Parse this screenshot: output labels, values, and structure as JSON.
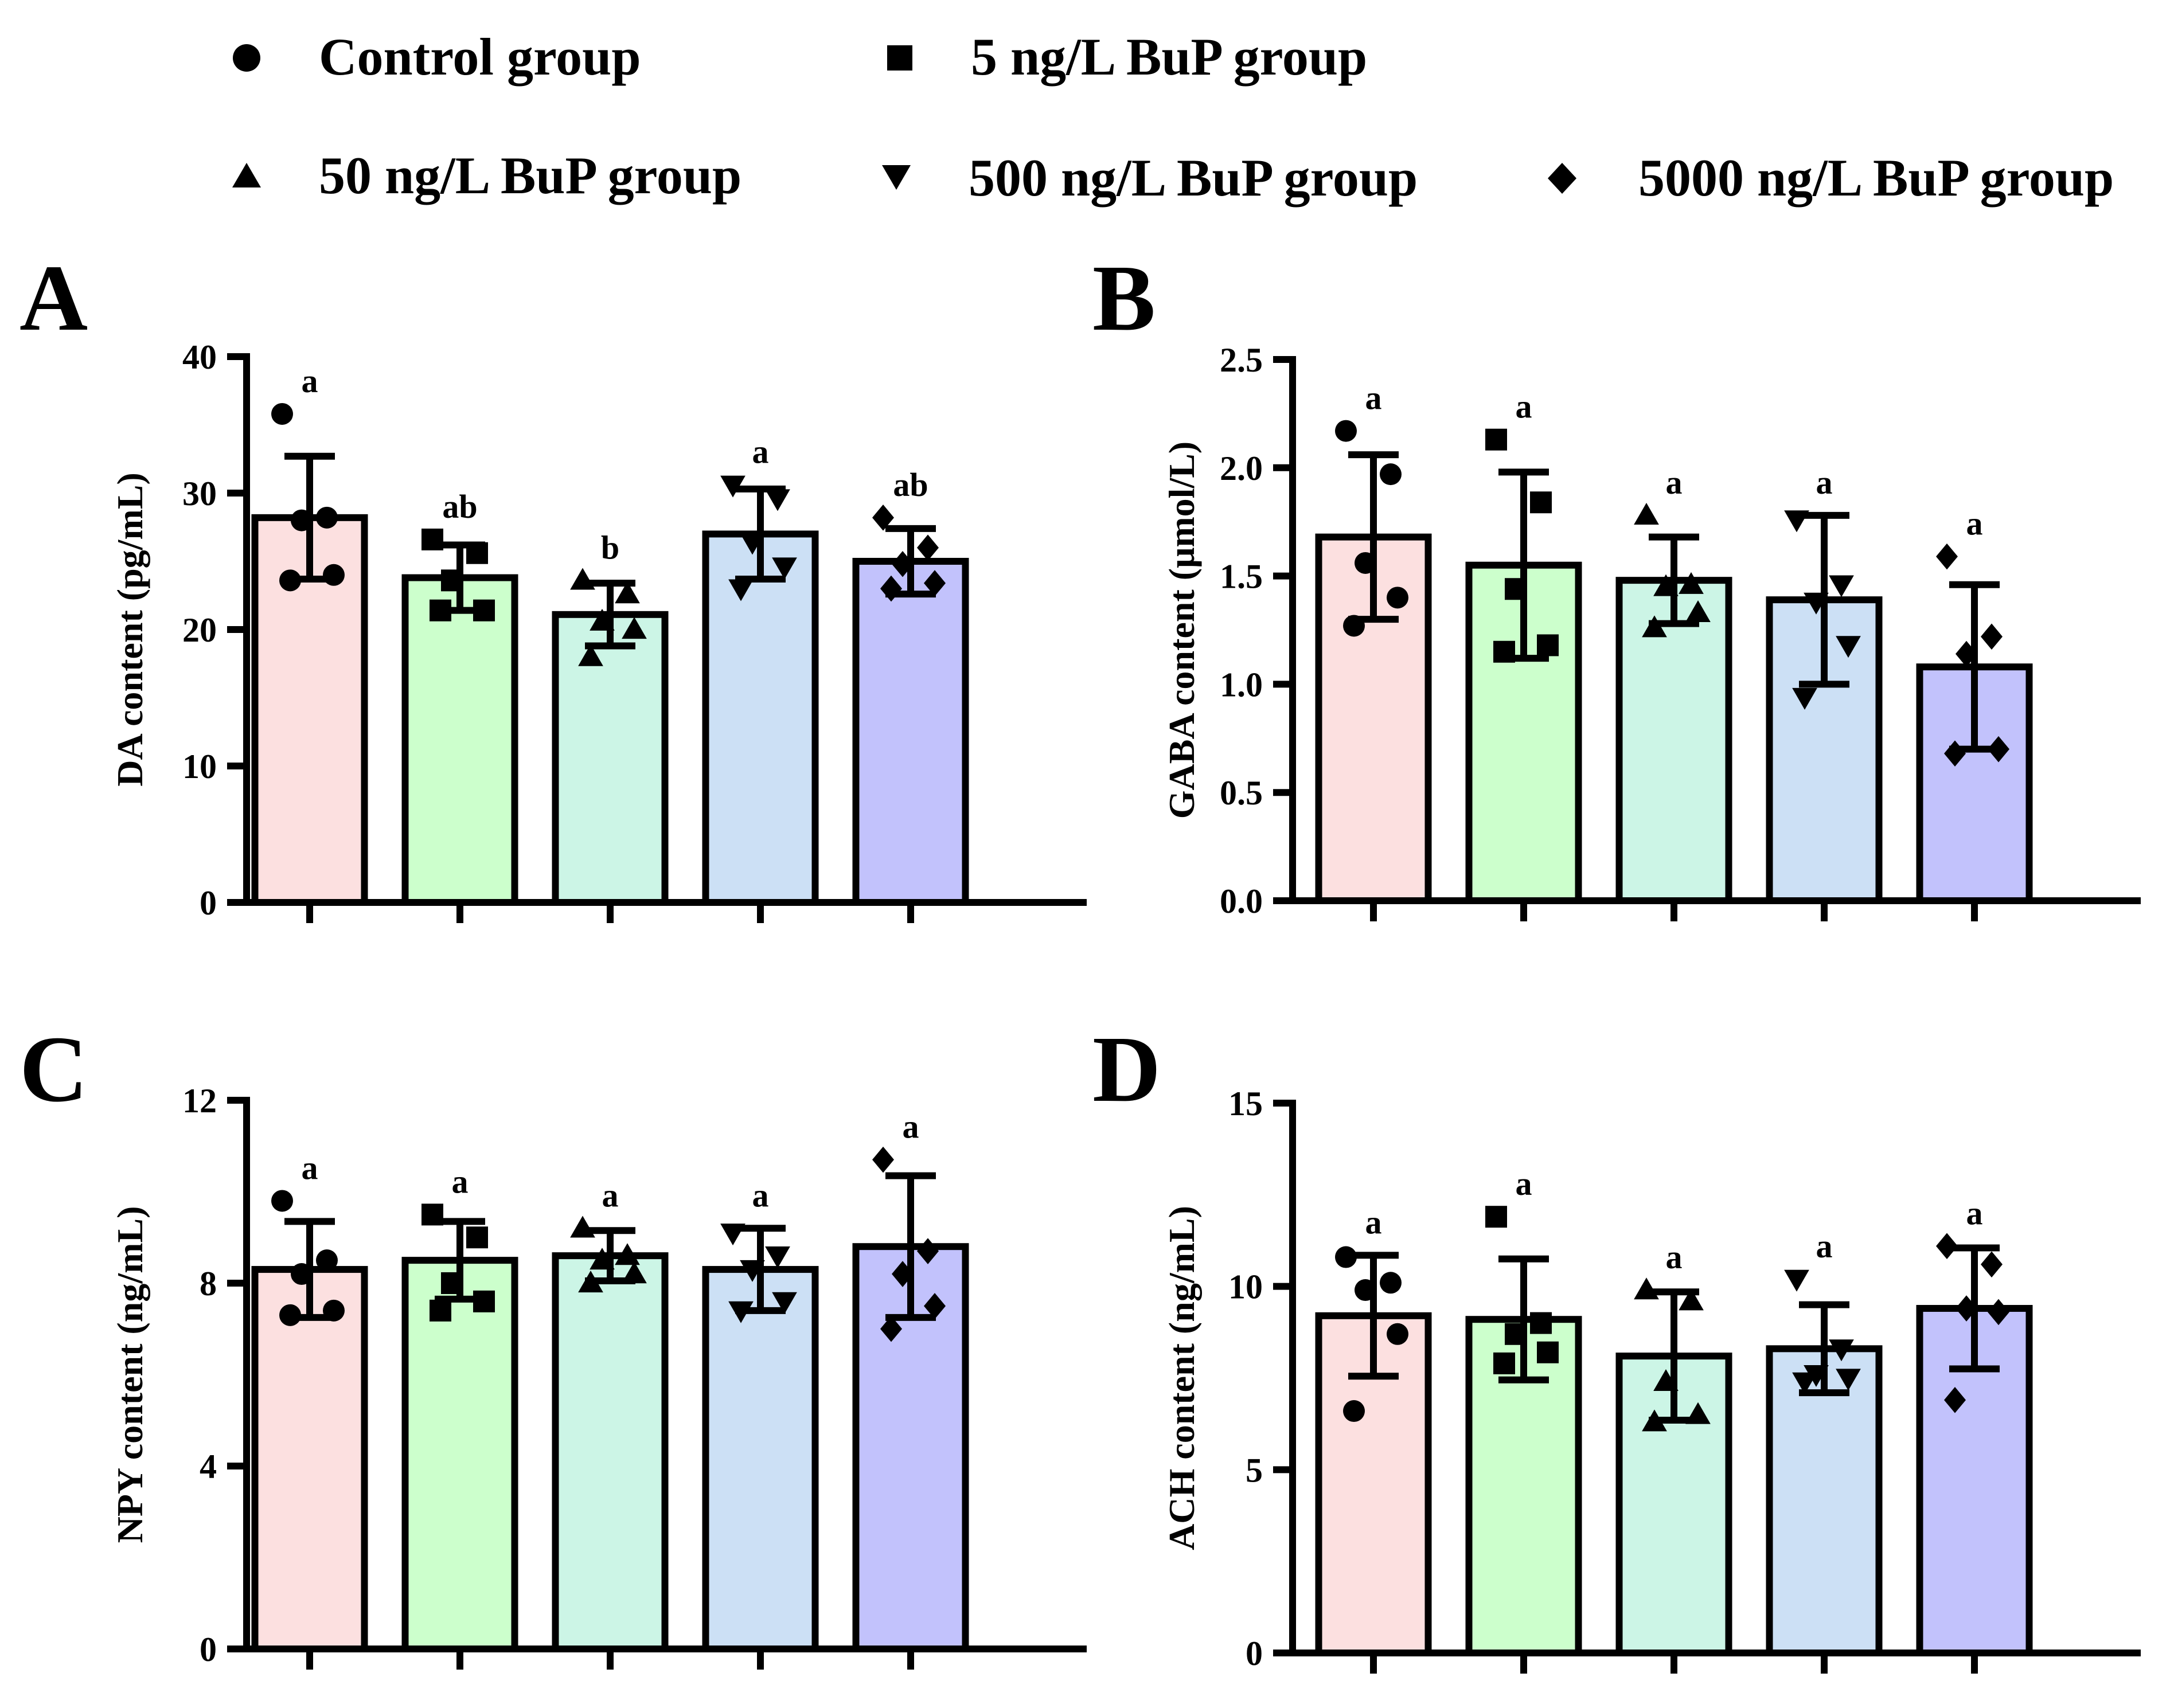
{
  "legend": [
    {
      "label": "Control group",
      "marker": "circle"
    },
    {
      "label": "5 ng/L BuP group",
      "marker": "square"
    },
    {
      "label": "50 ng/L BuP group",
      "marker": "triangle-up"
    },
    {
      "label": "500 ng/L BuP group",
      "marker": "triangle-down"
    },
    {
      "label": "5000 ng/L BuP group",
      "marker": "diamond"
    }
  ],
  "colors": {
    "bar_fills": [
      "#fce0e0",
      "#ccffcc",
      "#ccf5e6",
      "#cce0f5",
      "#c2c2fc"
    ],
    "stroke": "#000000"
  },
  "chart_data": [
    {
      "panel": "A",
      "type": "bar",
      "ylabel": "DA content (pg/mL)",
      "ylim": [
        0,
        40
      ],
      "yticks": [
        0,
        10,
        20,
        30,
        40
      ],
      "ytick_labels": [
        "0",
        "10",
        "20",
        "30",
        "40"
      ],
      "categories": [
        "Control group",
        "5 ng/L BuP group",
        "50 ng/L BuP group",
        "500 ng/L BuP group",
        "5000 ng/L BuP group"
      ],
      "values": [
        28.2,
        23.8,
        21.1,
        27.0,
        25.0
      ],
      "errors": [
        4.5,
        2.4,
        2.3,
        3.3,
        2.4
      ],
      "significance": [
        "a",
        "ab",
        "b",
        "a",
        "ab"
      ],
      "points": [
        [
          35.8,
          28.2,
          28.0,
          24.0,
          23.6
        ],
        [
          26.6,
          25.6,
          23.6,
          21.4,
          21.4
        ],
        [
          23.6,
          22.6,
          20.6,
          20.0,
          18.0
        ],
        [
          30.6,
          29.6,
          26.4,
          24.6,
          23.0
        ],
        [
          28.2,
          26.0,
          24.8,
          23.4,
          23.0
        ]
      ]
    },
    {
      "panel": "B",
      "type": "bar",
      "ylabel": "GABA content (μmol/L)",
      "ylim": [
        0,
        2.5
      ],
      "yticks": [
        0,
        0.5,
        1.0,
        1.5,
        2.0,
        2.5
      ],
      "ytick_labels": [
        "0.0",
        "0.5",
        "1.0",
        "1.5",
        "2.0",
        "2.5"
      ],
      "categories": [
        "Control group",
        "5 ng/L BuP group",
        "50 ng/L BuP group",
        "500 ng/L BuP group",
        "5000 ng/L BuP group"
      ],
      "values": [
        1.68,
        1.55,
        1.48,
        1.39,
        1.08
      ],
      "errors": [
        0.38,
        0.43,
        0.2,
        0.39,
        0.38
      ],
      "significance": [
        "a",
        "a",
        "a",
        "a",
        "a"
      ],
      "points": [
        [
          2.17,
          1.97,
          1.56,
          1.4,
          1.27
        ],
        [
          2.13,
          1.84,
          1.44,
          1.18,
          1.15
        ],
        [
          1.78,
          1.46,
          1.45,
          1.33,
          1.26
        ],
        [
          1.76,
          1.46,
          1.38,
          1.18,
          0.94
        ],
        [
          1.59,
          1.22,
          1.14,
          0.7,
          0.68
        ]
      ]
    },
    {
      "panel": "C",
      "type": "bar",
      "ylabel": "NPY content (ng/mL)",
      "ylim": [
        0,
        12
      ],
      "yticks": [
        0,
        4,
        8,
        12
      ],
      "ytick_labels": [
        "0",
        "4",
        "8",
        "12"
      ],
      "categories": [
        "Control group",
        "5 ng/L BuP group",
        "50 ng/L BuP group",
        "500 ng/L BuP group",
        "5000 ng/L BuP group"
      ],
      "values": [
        8.3,
        8.5,
        8.6,
        8.3,
        8.8
      ],
      "errors": [
        1.05,
        0.85,
        0.55,
        0.9,
        1.55
      ],
      "significance": [
        "a",
        "a",
        "a",
        "a",
        "a"
      ],
      "points": [
        [
          9.8,
          8.5,
          8.2,
          7.4,
          7.3
        ],
        [
          9.5,
          9.0,
          8.0,
          7.6,
          7.4
        ],
        [
          9.2,
          8.6,
          8.5,
          8.2,
          8.0
        ],
        [
          9.1,
          8.6,
          8.3,
          7.6,
          7.4
        ],
        [
          10.7,
          8.7,
          8.2,
          7.5,
          7.0
        ]
      ]
    },
    {
      "panel": "D",
      "type": "bar",
      "ylabel": "ACH content (ng/mL)",
      "ylim": [
        0,
        15
      ],
      "yticks": [
        0,
        5,
        10,
        15
      ],
      "ytick_labels": [
        "0",
        "5",
        "10",
        "15"
      ],
      "categories": [
        "Control group",
        "5 ng/L BuP group",
        "50 ng/L BuP group",
        "500 ng/L BuP group",
        "5000 ng/L BuP group"
      ],
      "values": [
        9.2,
        9.1,
        8.1,
        8.3,
        9.4
      ],
      "errors": [
        1.65,
        1.65,
        1.75,
        1.2,
        1.65
      ],
      "significance": [
        "a",
        "a",
        "a",
        "a",
        "a"
      ],
      "points": [
        [
          10.8,
          10.1,
          9.9,
          8.7,
          6.6
        ],
        [
          11.9,
          9.0,
          8.7,
          8.2,
          7.9
        ],
        [
          9.9,
          9.6,
          7.4,
          6.5,
          6.3
        ],
        [
          10.2,
          8.3,
          7.6,
          7.5,
          7.4
        ],
        [
          11.1,
          10.6,
          9.4,
          9.3,
          6.9
        ]
      ]
    }
  ],
  "panels": [
    {
      "id": "A",
      "letter": "A"
    },
    {
      "id": "B",
      "letter": "B"
    },
    {
      "id": "C",
      "letter": "C"
    },
    {
      "id": "D",
      "letter": "D"
    }
  ]
}
